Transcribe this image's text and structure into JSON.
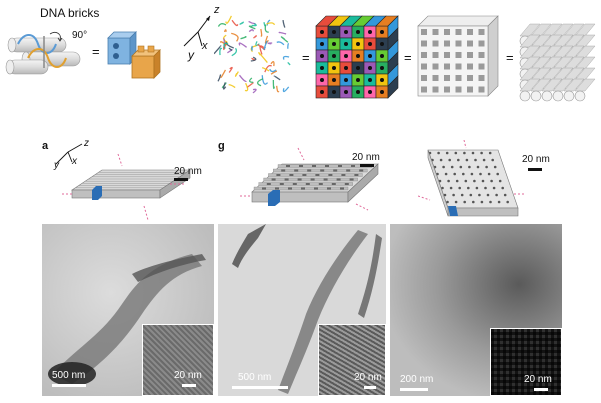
{
  "top": {
    "bricks_label": "DNA bricks",
    "angle_label": "90°",
    "equals": "="
  },
  "axes": {
    "x": "x",
    "y": "y",
    "z": "z"
  },
  "panels": [
    {
      "letter": "a",
      "scale_schematic": "20 nm",
      "scale_tem": "500 nm",
      "scale_inset": "20 nm"
    },
    {
      "letter": "g",
      "scale_schematic": "20 nm",
      "scale_tem": "500 nm",
      "scale_inset": "20 nm"
    },
    {
      "letter": "",
      "scale_schematic": "20 nm",
      "scale_tem": "200 nm",
      "scale_inset": "20 nm"
    }
  ]
}
